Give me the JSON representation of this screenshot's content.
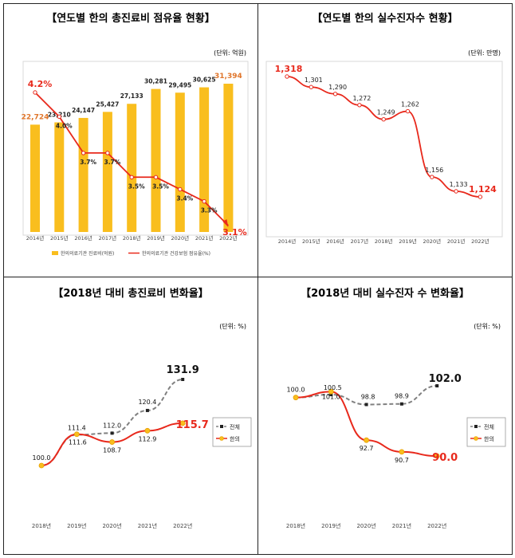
{
  "panels": [
    {
      "title": "【연도별 한의 총진료비 점유율 현황】",
      "unit": "(단위: 억원)"
    },
    {
      "title": "【연도별 한의 실수진자수 현황】",
      "unit": "(단위: 만명)"
    },
    {
      "title": "【2018년 대비 총진료비 변화율】",
      "unit": "(단위: %)"
    },
    {
      "title": "【2018년 대비 실수진자 수 변화율】",
      "unit": "(단위: %)"
    }
  ],
  "colors": {
    "bar": "#F9BE1E",
    "red": "#E8291C",
    "gray": "#808080",
    "dark": "#111111"
  },
  "chart_data": [
    {
      "type": "bar",
      "categories": [
        "2014년",
        "2015년",
        "2016년",
        "2017년",
        "2018년",
        "2019년",
        "2020년",
        "2021년",
        "2022년"
      ],
      "series": [
        {
          "name": "한의의료기관 진료비(억원)",
          "type": "bar",
          "values": [
            22724,
            23210,
            24147,
            25427,
            27133,
            30281,
            29495,
            30625,
            31394
          ],
          "labels": [
            "22,724",
            "23,210",
            "24,147",
            "25,427",
            "27,133",
            "30,281",
            "29,495",
            "30,625",
            "31,394"
          ]
        },
        {
          "name": "한의의료기관 건강보험 점유율(%)",
          "type": "line",
          "values": [
            4.2,
            4.0,
            3.7,
            3.7,
            3.5,
            3.5,
            3.4,
            3.3,
            3.1
          ],
          "labels": [
            "4.2%",
            "4.0%",
            "3.7%",
            "3.7%",
            "3.5%",
            "3.5%",
            "3.4%",
            "3.3%",
            "3.1%"
          ]
        }
      ]
    },
    {
      "type": "line",
      "categories": [
        "2014년",
        "2015년",
        "2016년",
        "2017년",
        "2018년",
        "2019년",
        "2020년",
        "2021년",
        "2022년"
      ],
      "series": [
        {
          "values": [
            1318,
            1301,
            1290,
            1272,
            1249,
            1262,
            1156,
            1133,
            1124
          ],
          "labels": [
            "1,318",
            "1,301",
            "1,290",
            "1,272",
            "1,249",
            "1,262",
            "1,156",
            "1,133",
            "1,124"
          ]
        }
      ]
    },
    {
      "type": "line",
      "categories": [
        "2018년",
        "2019년",
        "2020년",
        "2021년",
        "2022년"
      ],
      "series": [
        {
          "name": "전체",
          "values": [
            100.0,
            111.4,
            112.0,
            120.4,
            131.9
          ],
          "labels": [
            "100.0",
            "111.4",
            "112.0",
            "120.4",
            "131.9"
          ]
        },
        {
          "name": "한의",
          "values": [
            100.0,
            111.6,
            108.7,
            112.9,
            115.7
          ],
          "labels": [
            "100.0",
            "111.6",
            "108.7",
            "112.9",
            "115.7"
          ]
        }
      ]
    },
    {
      "type": "line",
      "categories": [
        "2018년",
        "2019년",
        "2020년",
        "2021년",
        "2022년"
      ],
      "series": [
        {
          "name": "전체",
          "values": [
            100.0,
            100.5,
            98.8,
            98.9,
            102.0
          ],
          "labels": [
            "100.0",
            "100.5",
            "98.8",
            "98.9",
            "102.0"
          ]
        },
        {
          "name": "한의",
          "values": [
            100.0,
            101.0,
            92.7,
            90.7,
            90.0
          ],
          "labels": [
            "100.0",
            "101.0",
            "92.7",
            "90.7",
            "90.0"
          ]
        }
      ]
    }
  ]
}
